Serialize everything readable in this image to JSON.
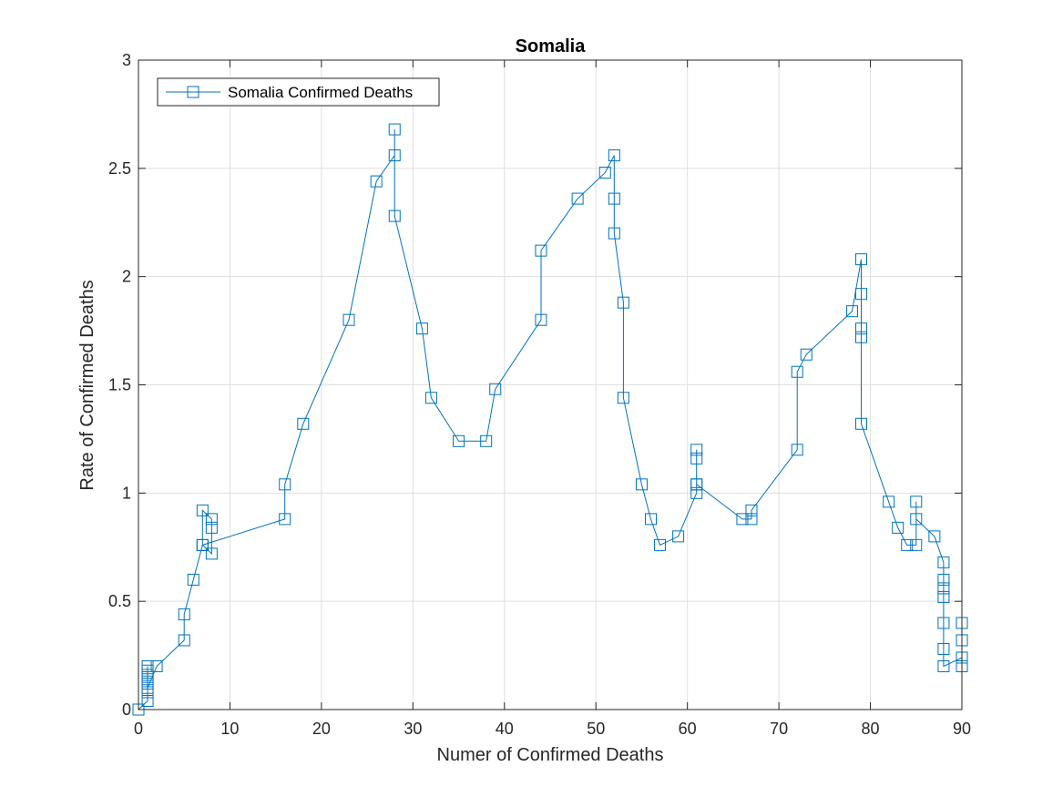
{
  "chart_data": {
    "type": "line",
    "title": "Somalia",
    "xlabel": "Numer of Confirmed Deaths",
    "ylabel": "Rate of Confirmed Deaths",
    "xlim": [
      0,
      90
    ],
    "ylim": [
      0,
      3
    ],
    "xticks": [
      "0",
      "10",
      "20",
      "30",
      "40",
      "50",
      "60",
      "70",
      "80",
      "90"
    ],
    "yticks": [
      "0",
      "0.5",
      "1",
      "1.5",
      "2",
      "2.5",
      "3"
    ],
    "grid": true,
    "legend_position": "top-left",
    "series": [
      {
        "name": "Somalia Confirmed Deaths",
        "color": "#0072BD",
        "marker": "square",
        "x": [
          0,
          1,
          1,
          1,
          1,
          1,
          1,
          1,
          1,
          2,
          5,
          5,
          6,
          7,
          7,
          8,
          8,
          8,
          7,
          16,
          16,
          18,
          23,
          26,
          28,
          28,
          28,
          31,
          32,
          35,
          38,
          39,
          44,
          44,
          48,
          51,
          52,
          52,
          52,
          53,
          53,
          55,
          56,
          57,
          59,
          61,
          61,
          61,
          61,
          61,
          66,
          67,
          67,
          72,
          72,
          73,
          78,
          79,
          79,
          79,
          79,
          79,
          82,
          83,
          84,
          85,
          85,
          85,
          87,
          88,
          88,
          88,
          88,
          88,
          88,
          88,
          90,
          90,
          90,
          90
        ],
        "y": [
          0,
          0.04,
          0.08,
          0.12,
          0.16,
          0.2,
          0.18,
          0.14,
          0.1,
          0.2,
          0.32,
          0.44,
          0.6,
          0.76,
          0.92,
          0.88,
          0.84,
          0.72,
          0.76,
          0.88,
          1.04,
          1.32,
          1.8,
          2.44,
          2.56,
          2.68,
          2.28,
          1.76,
          1.44,
          1.24,
          1.24,
          1.48,
          1.8,
          2.12,
          2.36,
          2.48,
          2.56,
          2.36,
          2.2,
          1.88,
          1.44,
          1.04,
          0.88,
          0.76,
          0.8,
          1.0,
          1.04,
          1.2,
          1.16,
          1.04,
          0.88,
          0.88,
          0.92,
          1.2,
          1.56,
          1.64,
          1.84,
          2.08,
          1.92,
          1.76,
          1.72,
          1.32,
          0.96,
          0.84,
          0.76,
          0.76,
          0.96,
          0.88,
          0.8,
          0.68,
          0.6,
          0.56,
          0.52,
          0.4,
          0.28,
          0.2,
          0.24,
          0.2,
          0.32,
          0.4
        ]
      }
    ]
  }
}
